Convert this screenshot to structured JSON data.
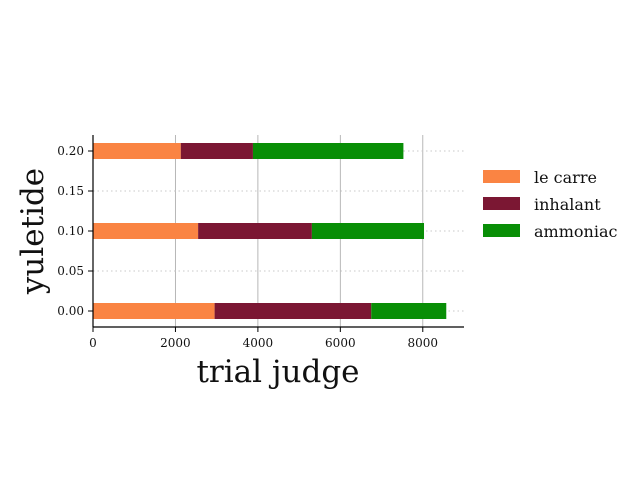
{
  "chart_data": {
    "type": "bar",
    "orientation": "horizontal",
    "stacked": true,
    "xlabel": "trial judge",
    "ylabel": "yuletide",
    "xlim": [
      0,
      9000
    ],
    "ylim": [
      -0.02,
      0.22
    ],
    "x_ticks": [
      0,
      2000,
      4000,
      6000,
      8000
    ],
    "x_tick_labels": [
      "0",
      "2000",
      "4000",
      "6000",
      "8000"
    ],
    "y_ticks": [
      0.0,
      0.05,
      0.1,
      0.15,
      0.2
    ],
    "y_tick_labels": [
      "0.00",
      "0.05",
      "0.10",
      "0.15",
      "0.20"
    ],
    "categories": [
      0.0,
      0.1,
      0.2
    ],
    "bar_height": 0.02,
    "series": [
      {
        "name": "le carre",
        "color": "#fa8443",
        "values": [
          2950,
          2550,
          2130
        ]
      },
      {
        "name": "inhalant",
        "color": "#7b1733",
        "values": [
          3800,
          2760,
          1750
        ]
      },
      {
        "name": "ammoniac",
        "color": "#088e06",
        "values": [
          1820,
          2720,
          3650
        ]
      }
    ],
    "grid": {
      "x": "solid",
      "y": "dotted"
    },
    "legend_position": "right"
  }
}
